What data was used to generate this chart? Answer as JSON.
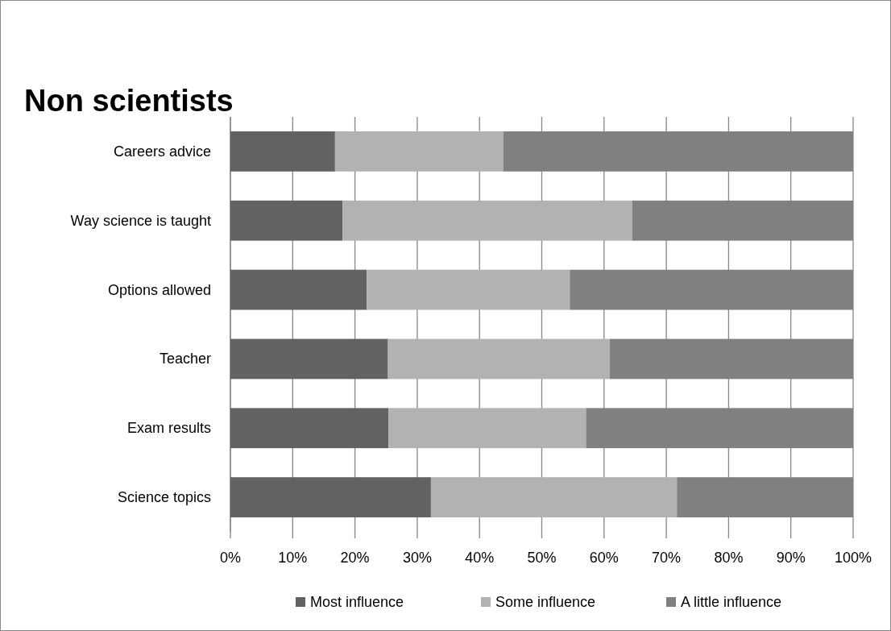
{
  "chart_data": {
    "type": "bar",
    "orientation": "horizontal",
    "stacked": true,
    "title": "Non scientists",
    "categories": [
      "Careers advice",
      "Way science is taught",
      "Options allowed",
      "Teacher",
      "Exam results",
      "Science topics"
    ],
    "series": [
      {
        "name": "Most influence",
        "color": "#626262",
        "values": [
          16.8,
          18.0,
          21.9,
          25.3,
          25.4,
          32.2
        ]
      },
      {
        "name": "Some influence",
        "color": "#b2b2b2",
        "values": [
          27.0,
          46.5,
          32.6,
          35.6,
          31.7,
          39.5
        ]
      },
      {
        "name": "A little influence",
        "color": "#808080",
        "values": [
          56.2,
          35.5,
          45.5,
          39.1,
          42.9,
          28.3
        ]
      }
    ],
    "xlim": [
      0,
      100
    ],
    "xticks": [
      {
        "value": 0,
        "label": "0%"
      },
      {
        "value": 10,
        "label": "10%"
      },
      {
        "value": 20,
        "label": "20%"
      },
      {
        "value": 30,
        "label": "30%"
      },
      {
        "value": 40,
        "label": "40%"
      },
      {
        "value": 50,
        "label": "50%"
      },
      {
        "value": 60,
        "label": "60%"
      },
      {
        "value": 70,
        "label": "70%"
      },
      {
        "value": 80,
        "label": "80%"
      },
      {
        "value": 90,
        "label": "90%"
      },
      {
        "value": 100,
        "label": "100%"
      }
    ],
    "grid": "x",
    "legend": "bottom"
  }
}
